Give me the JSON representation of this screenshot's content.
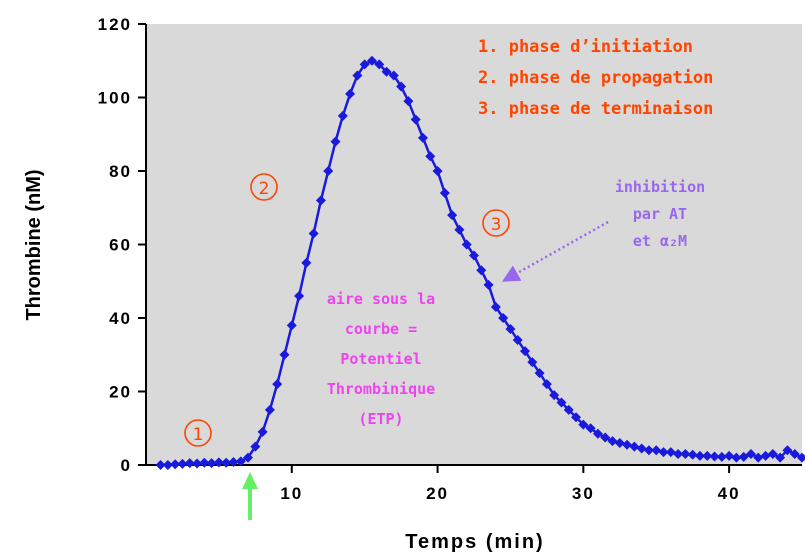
{
  "chart_data": {
    "type": "line",
    "xlabel": "Temps (min)",
    "ylabel": "Thrombine (nM)",
    "xlim": [
      0,
      45
    ],
    "ylim": [
      0,
      120
    ],
    "x_ticks": [
      "10",
      "20",
      "30",
      "40"
    ],
    "y_ticks": [
      "0",
      "20",
      "40",
      "60",
      "80",
      "100",
      "120"
    ],
    "x_tick_values": [
      10,
      20,
      30,
      40
    ],
    "y_tick_values": [
      0,
      20,
      40,
      60,
      80,
      100,
      120
    ],
    "grid": false,
    "series": [
      {
        "name": "",
        "color": "#1a1adc",
        "marker": "diamond",
        "x": [
          1,
          1.5,
          2,
          2.5,
          3,
          3.5,
          4,
          4.5,
          5,
          5.5,
          6,
          6.5,
          7,
          7.5,
          8,
          8.5,
          9,
          9.5,
          10,
          10.5,
          11,
          11.5,
          12,
          12.5,
          13,
          13.5,
          14,
          14.5,
          15,
          15.5,
          16,
          16.5,
          17,
          17.5,
          18,
          18.5,
          19,
          19.5,
          20,
          20.5,
          21,
          21.5,
          22,
          22.5,
          23,
          23.5,
          24,
          24.5,
          25,
          25.5,
          26,
          26.5,
          27,
          27.5,
          28,
          28.5,
          29,
          29.5,
          30,
          30.5,
          31,
          31.5,
          32,
          32.5,
          33,
          33.5,
          34,
          34.5,
          35,
          35.5,
          36,
          36.5,
          37,
          37.5,
          38,
          38.5,
          39,
          39.5,
          40,
          40.5,
          41,
          41.5,
          42,
          42.5,
          43,
          43.5,
          44,
          44.5,
          45
        ],
        "values": [
          0,
          0,
          0.2,
          0.3,
          0.5,
          0.4,
          0.6,
          0.5,
          0.7,
          0.6,
          0.8,
          1,
          2,
          5,
          9,
          15,
          22,
          30,
          38,
          46,
          55,
          63,
          72,
          80,
          88,
          95,
          101,
          106,
          109,
          110,
          109,
          107,
          106,
          103,
          99,
          94,
          89,
          84,
          80,
          74,
          68,
          64,
          60,
          57,
          53,
          49,
          43,
          40,
          37,
          34,
          31,
          28,
          25,
          22,
          19,
          17,
          15,
          13,
          11,
          10,
          8.5,
          7.5,
          6.5,
          6,
          5.5,
          5,
          4.5,
          4,
          4,
          3.5,
          3.5,
          3,
          3,
          2.8,
          2.5,
          2.5,
          2.3,
          2.2,
          2.5,
          2,
          2.2,
          3,
          2,
          2.5,
          3,
          2,
          4,
          3,
          2
        ]
      }
    ],
    "annotations": {
      "legend_lines": [
        "1. phase d’initiation",
        "2. phase de propagation",
        "3. phase de terminaison"
      ],
      "phase_markers": [
        "①",
        "②",
        "③"
      ],
      "inhibition": [
        "inhibition",
        "par AT",
        "et α₂M"
      ],
      "area_label": [
        "aire sous la",
        "courbe =",
        "Potentiel",
        "Thrombinique",
        "(ETP)"
      ]
    },
    "colors": {
      "plot_bg": "#d9d9d9",
      "series": "#1a1adc",
      "legend": "#ff4500",
      "inhibition": "#9966ee",
      "area": "#ee44ee",
      "lag_arrow": "#66ee66"
    }
  }
}
